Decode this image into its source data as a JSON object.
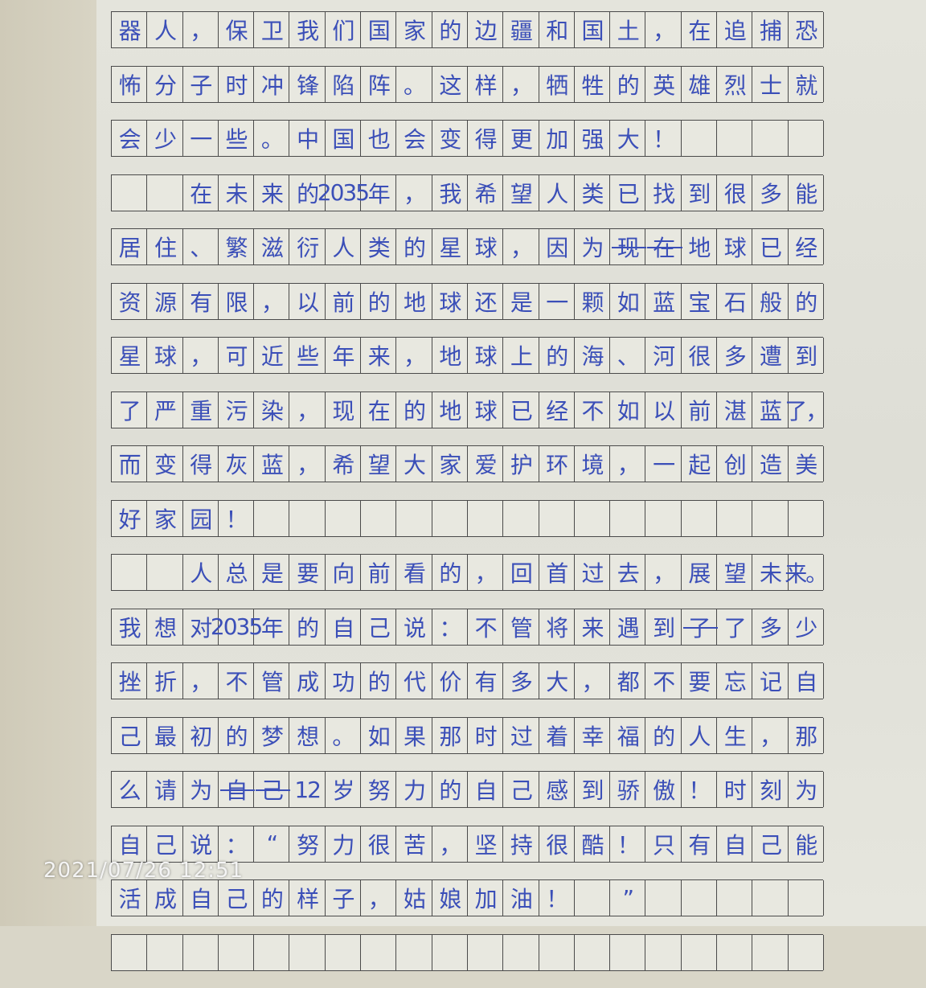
{
  "essay": {
    "rows": [
      {
        "cells": [
          "器",
          "人",
          "，",
          "保",
          "卫",
          "我",
          "们",
          "国",
          "家",
          "的",
          "边",
          "疆",
          "和",
          "国",
          "土",
          "，",
          "在",
          "追",
          "捕",
          "恐"
        ],
        "struck": []
      },
      {
        "cells": [
          "怖",
          "分",
          "子",
          "时",
          "冲",
          "锋",
          "陷",
          "阵",
          "。",
          "这",
          "样",
          "，",
          "牺",
          "牲",
          "的",
          "英",
          "雄",
          "烈",
          "士",
          "就"
        ],
        "struck": []
      },
      {
        "cells": [
          "会",
          "少",
          "一",
          "些",
          "。",
          "中",
          "国",
          "也",
          "会",
          "变",
          "得",
          "更",
          "加",
          "强",
          "大",
          "！",
          "",
          "",
          "",
          ""
        ],
        "struck": []
      },
      {
        "cells": [
          "",
          "",
          "在",
          "未",
          "来",
          "的",
          "2035",
          "年",
          "，",
          "我",
          "希",
          "望",
          "人",
          "类",
          "已",
          "找",
          "到",
          "很",
          "多",
          "能"
        ],
        "struck": []
      },
      {
        "cells": [
          "居",
          "住",
          "、",
          "繁",
          "滋",
          "衍",
          "人",
          "类",
          "的",
          "星",
          "球",
          "，",
          "因",
          "为",
          "现",
          "在",
          "地",
          "球",
          "已",
          "经"
        ],
        "struck": [
          14,
          15
        ]
      },
      {
        "cells": [
          "资",
          "源",
          "有",
          "限",
          "，",
          "以",
          "前",
          "的",
          "地",
          "球",
          "还",
          "是",
          "一",
          "颗",
          "如",
          "蓝",
          "宝",
          "石",
          "般",
          "的"
        ],
        "struck": []
      },
      {
        "cells": [
          "星",
          "球",
          "，",
          "可",
          "近",
          "些",
          "年",
          "来",
          "，",
          "地",
          "球",
          "上",
          "的",
          "海",
          "、",
          "河",
          "很",
          "多",
          "遭",
          "到"
        ],
        "struck": []
      },
      {
        "cells": [
          "了",
          "严",
          "重",
          "污",
          "染",
          "，",
          "现",
          "在",
          "的",
          "地",
          "球",
          "已",
          "经",
          "不",
          "如",
          "以",
          "前",
          "湛",
          "蓝",
          "了，"
        ],
        "struck": []
      },
      {
        "cells": [
          "而",
          "变",
          "得",
          "灰",
          "蓝",
          "，",
          "希",
          "望",
          "大",
          "家",
          "爱",
          "护",
          "环",
          "境",
          "，",
          "一",
          "起",
          "创",
          "造",
          "美"
        ],
        "struck": []
      },
      {
        "cells": [
          "好",
          "家",
          "园",
          "！",
          "",
          "",
          "",
          "",
          "",
          "",
          "",
          "",
          "",
          "",
          "",
          "",
          "",
          "",
          "",
          ""
        ],
        "struck": []
      },
      {
        "cells": [
          "",
          "",
          "人",
          "总",
          "是",
          "要",
          "向",
          "前",
          "看",
          "的",
          "，",
          "回",
          "首",
          "过",
          "去",
          "，",
          "展",
          "望",
          "未",
          "来。"
        ],
        "struck": []
      },
      {
        "cells": [
          "我",
          "想",
          "对",
          "2035",
          "年",
          "的",
          "自",
          "己",
          "说",
          "：",
          "不",
          "管",
          "将",
          "来",
          "遇",
          "到",
          "了",
          "了",
          "多",
          "少"
        ],
        "struck": [
          16
        ]
      },
      {
        "cells": [
          "挫",
          "折",
          "，",
          "不",
          "管",
          "成",
          "功",
          "的",
          "代",
          "价",
          "有",
          "多",
          "大",
          "，",
          "都",
          "不",
          "要",
          "忘",
          "记",
          "自"
        ],
        "struck": []
      },
      {
        "cells": [
          "己",
          "最",
          "初",
          "的",
          "梦",
          "想",
          "。",
          "如",
          "果",
          "那",
          "时",
          "过",
          "着",
          "幸",
          "福",
          "的",
          "人",
          "生",
          "，",
          "那"
        ],
        "struck": []
      },
      {
        "cells": [
          "么",
          "请",
          "为",
          "自",
          "己",
          "12",
          "岁",
          "努",
          "力",
          "的",
          "自",
          "己",
          "感",
          "到",
          "骄",
          "傲",
          "！",
          "时",
          "刻",
          "为"
        ],
        "struck": [
          3,
          4
        ]
      },
      {
        "cells": [
          "自",
          "己",
          "说",
          "：",
          "“",
          "努",
          "力",
          "很",
          "苦",
          "，",
          "坚",
          "持",
          "很",
          "酷",
          "！",
          "只",
          "有",
          "自",
          "己",
          "能"
        ],
        "struck": []
      },
      {
        "cells": [
          "活",
          "成",
          "自",
          "己",
          "的",
          "样",
          "子",
          "，",
          "姑",
          "娘",
          "加",
          "油",
          "！",
          "",
          "”",
          "",
          "",
          "",
          "",
          ""
        ],
        "struck": []
      },
      {
        "cells": [
          "",
          "",
          "",
          "",
          "",
          "",
          "",
          "",
          "",
          "",
          "",
          "",
          "",
          "",
          "",
          "",
          "",
          "",
          "",
          ""
        ],
        "struck": []
      }
    ]
  },
  "photo": {
    "timestamp": "2021/07/26 12:51"
  },
  "colors": {
    "ink": "#3b4fb8",
    "paper": "#e4e4dc",
    "grid": "#4a4a4a"
  }
}
